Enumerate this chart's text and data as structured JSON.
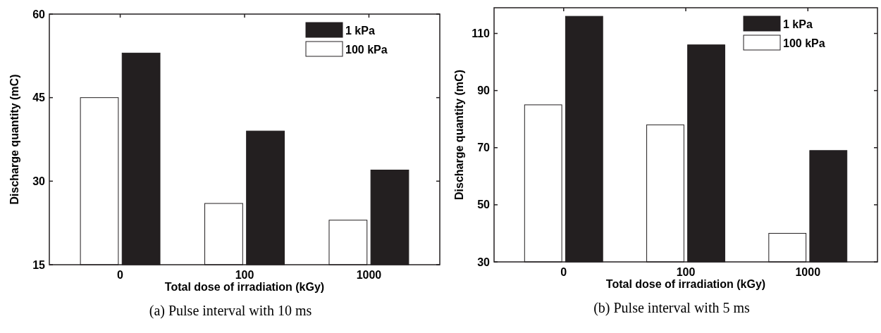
{
  "chart_data": [
    {
      "type": "bar",
      "title": "(a) Pulse interval with 10 ms",
      "xlabel": "Total dose of irradiation (kGy)",
      "ylabel": "Discharge quantity (mC)",
      "categories": [
        "0",
        "100",
        "1000"
      ],
      "series": [
        {
          "name": "100 kPa",
          "color": "#ffffff",
          "values": [
            45,
            26,
            23
          ]
        },
        {
          "name": "1 kPa",
          "color": "#231f20",
          "values": [
            53,
            39,
            32
          ]
        }
      ],
      "ylim": [
        15,
        60
      ],
      "yticks": [
        15,
        30,
        45,
        60
      ],
      "legend": "top right"
    },
    {
      "type": "bar",
      "title": "(b) Pulse interval with 5 ms",
      "xlabel": "Total dose of irradiation (kGy)",
      "ylabel": "Discharge quantity (mC)",
      "categories": [
        "0",
        "100",
        "1000"
      ],
      "series": [
        {
          "name": "100 kPa",
          "color": "#ffffff",
          "values": [
            85,
            78,
            40
          ]
        },
        {
          "name": "1 kPa",
          "color": "#231f20",
          "values": [
            116,
            106,
            69
          ]
        }
      ],
      "ylim": [
        30,
        119
      ],
      "yticks": [
        30,
        50,
        70,
        90,
        110
      ],
      "legend": "top right"
    }
  ]
}
